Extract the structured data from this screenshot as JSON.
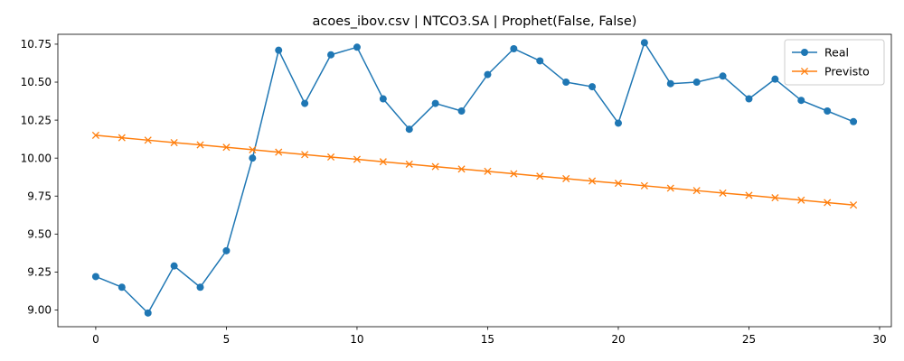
{
  "chart_data": {
    "type": "line",
    "title": "acoes_ibov.csv | NTCO3.SA | Prophet(False, False)",
    "xlabel": "",
    "ylabel": "",
    "xlim": [
      -1.45,
      30.45
    ],
    "ylim": [
      8.89,
      10.815
    ],
    "xticks": [
      0,
      5,
      10,
      15,
      20,
      25,
      30
    ],
    "yticks": [
      9.0,
      9.25,
      9.5,
      9.75,
      10.0,
      10.25,
      10.5,
      10.75
    ],
    "grid": false,
    "legend_position": "top-right",
    "x": [
      0,
      1,
      2,
      3,
      4,
      5,
      6,
      7,
      8,
      9,
      10,
      11,
      12,
      13,
      14,
      15,
      16,
      17,
      18,
      19,
      20,
      21,
      22,
      23,
      24,
      25,
      26,
      27,
      28,
      29
    ],
    "series": [
      {
        "name": "Real",
        "color": "#1f77b4",
        "marker": "circle",
        "values": [
          9.22,
          9.15,
          8.98,
          9.29,
          9.15,
          9.39,
          10.0,
          10.71,
          10.36,
          10.68,
          10.73,
          10.39,
          10.19,
          10.36,
          10.31,
          10.55,
          10.72,
          10.64,
          10.5,
          10.47,
          10.23,
          10.76,
          10.49,
          10.5,
          10.54,
          10.39,
          10.52,
          10.38,
          10.31,
          10.24
        ]
      },
      {
        "name": "Previsto",
        "color": "#ff7f0e",
        "marker": "x",
        "values": [
          10.15,
          10.134,
          10.118,
          10.102,
          10.087,
          10.071,
          10.055,
          10.039,
          10.023,
          10.007,
          9.992,
          9.976,
          9.96,
          9.944,
          9.928,
          9.913,
          9.897,
          9.881,
          9.865,
          9.849,
          9.834,
          9.818,
          9.802,
          9.786,
          9.77,
          9.755,
          9.739,
          9.723,
          9.707,
          9.691
        ]
      }
    ]
  }
}
